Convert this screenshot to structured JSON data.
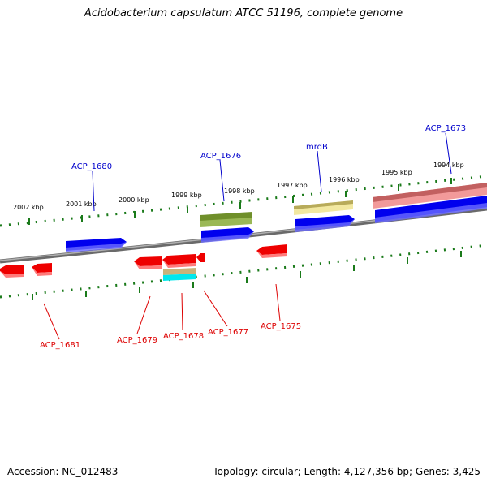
{
  "title": "Acidobacterium capsulatum ATCC 51196, complete genome",
  "footer": {
    "accession": "Accession: NC_012483",
    "summary": "Topology: circular; Length: 4,127,356 bp; Genes: 3,425"
  },
  "colors": {
    "plus_label": "#0000cc",
    "minus_label": "#dd0000",
    "tick": "#1a7a1a",
    "backbone": "#808080"
  },
  "scale_labels": [
    "2002 kbp",
    "2001 kbp",
    "2000 kbp",
    "1999 kbp",
    "1998 kbp",
    "1997 kbp",
    "1996 kbp",
    "1995 kbp",
    "1994 kbp"
  ],
  "plus_strand_labels": [
    "ACP_1680",
    "ACP_1676",
    "mrdB",
    "ACP_1673"
  ],
  "minus_strand_labels": [
    "ACP_1681",
    "ACP_1679",
    "ACP_1678",
    "ACP_1677",
    "ACP_1675"
  ]
}
